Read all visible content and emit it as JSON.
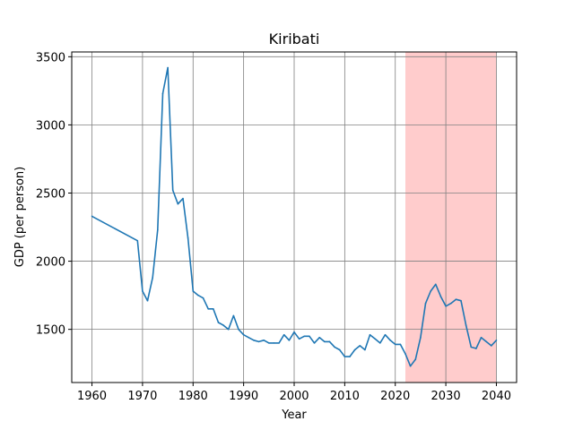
{
  "chart_data": {
    "type": "line",
    "title": "Kiribati",
    "xlabel": "Year",
    "ylabel": "GDP (per person)",
    "xlim": [
      1956,
      2044
    ],
    "ylim": [
      1110,
      3535
    ],
    "xticks": [
      1960,
      1970,
      1980,
      1990,
      2000,
      2010,
      2020,
      2030,
      2040
    ],
    "yticks": [
      1500,
      2000,
      2500,
      3000,
      3500
    ],
    "grid": true,
    "line_color": "#1f77b4",
    "highlight": {
      "x_start": 2022,
      "x_end": 2040,
      "color": "#ffcccc"
    },
    "series": [
      {
        "x": [
          1960,
          1969,
          1970,
          1971,
          1972,
          1973,
          1974,
          1975,
          1976,
          1977,
          1978,
          1979,
          1980,
          1981,
          1982,
          1983,
          1984,
          1985,
          1986,
          1987,
          1988,
          1989,
          1990,
          1991,
          1992,
          1993,
          1994,
          1995,
          1996,
          1997,
          1998,
          1999,
          2000,
          2001,
          2002,
          2003,
          2004,
          2005,
          2006,
          2007,
          2008,
          2009,
          2010,
          2011,
          2012,
          2013,
          2014,
          2015,
          2016,
          2017,
          2018,
          2019,
          2020,
          2021,
          2022,
          2023,
          2024,
          2025,
          2026,
          2027,
          2028,
          2029,
          2030,
          2031,
          2032,
          2033,
          2034,
          2035,
          2036,
          2037,
          2038,
          2039,
          2040
        ],
        "y": [
          2330,
          2150,
          1780,
          1710,
          1880,
          2230,
          3230,
          3420,
          2520,
          2420,
          2460,
          2170,
          1780,
          1750,
          1730,
          1650,
          1650,
          1550,
          1530,
          1500,
          1600,
          1500,
          1460,
          1440,
          1420,
          1410,
          1420,
          1400,
          1400,
          1400,
          1460,
          1420,
          1480,
          1430,
          1450,
          1450,
          1400,
          1440,
          1410,
          1410,
          1370,
          1350,
          1300,
          1300,
          1350,
          1380,
          1350,
          1460,
          1430,
          1400,
          1460,
          1420,
          1390,
          1390,
          1320,
          1230,
          1280,
          1440,
          1690,
          1780,
          1830,
          1740,
          1670,
          1690,
          1720,
          1710,
          1530,
          1370,
          1360,
          1440,
          1410,
          1380,
          1420
        ]
      }
    ]
  }
}
